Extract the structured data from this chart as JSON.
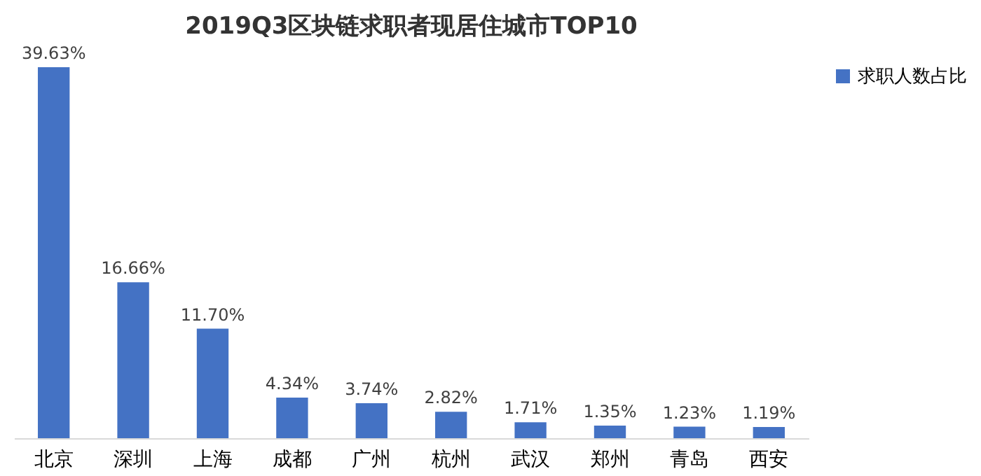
{
  "chart_data": {
    "type": "bar",
    "title": "2019Q3区块链求职者现居住城市TOP10",
    "categories": [
      "北京",
      "深圳",
      "上海",
      "成都",
      "广州",
      "杭州",
      "武汉",
      "郑州",
      "青岛",
      "西安"
    ],
    "series": [
      {
        "name": "求职人数占比",
        "color": "#4472c4",
        "values": [
          39.63,
          16.66,
          11.7,
          4.34,
          3.74,
          2.82,
          1.71,
          1.35,
          1.23,
          1.19
        ],
        "value_labels": [
          "39.63%",
          "16.66%",
          "11.70%",
          "4.34%",
          "3.74%",
          "2.82%",
          "1.71%",
          "1.35%",
          "1.23%",
          "1.19%"
        ]
      }
    ],
    "legend": "right",
    "grid": false
  }
}
